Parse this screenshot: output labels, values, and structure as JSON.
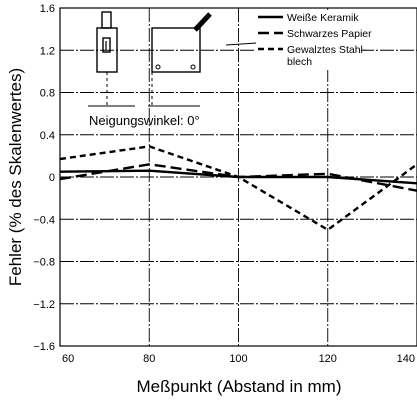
{
  "chart_data": {
    "type": "line",
    "title": "",
    "xlabel": "Meßpunkt (Abstand in mm)",
    "ylabel": "Fehler (% des Skalenwertes)",
    "xlim": [
      60,
      140
    ],
    "ylim": [
      -1.6,
      1.6
    ],
    "x_ticks": [
      60,
      80,
      100,
      120,
      140
    ],
    "y_ticks": [
      1.6,
      1.2,
      0.8,
      0.4,
      0,
      -0.4,
      -0.8,
      -1.2,
      -1.6
    ],
    "grid": true,
    "legend_position": "top-right",
    "annotation": "Neigungswinkel: 0°",
    "series": [
      {
        "name": "Weiße Keramik",
        "style": "solid",
        "x": [
          60,
          80,
          100,
          120,
          140
        ],
        "y": [
          0.05,
          0.06,
          0.0,
          0.0,
          -0.06
        ]
      },
      {
        "name": "Schwarzes Papier",
        "style": "long-dash",
        "x": [
          60,
          80,
          100,
          120,
          140
        ],
        "y": [
          -0.02,
          0.12,
          0.0,
          0.03,
          -0.13
        ]
      },
      {
        "name": "Gewalztes Stahlblech",
        "style": "short-dash",
        "x": [
          60,
          80,
          100,
          120,
          140
        ],
        "y": [
          0.17,
          0.29,
          0.0,
          -0.5,
          0.12
        ]
      }
    ]
  },
  "colors": {
    "line": "#000000",
    "grid": "#000000",
    "background": "#ffffff"
  },
  "icons": [
    "sensor-front-view-icon",
    "sensor-side-view-icon"
  ]
}
